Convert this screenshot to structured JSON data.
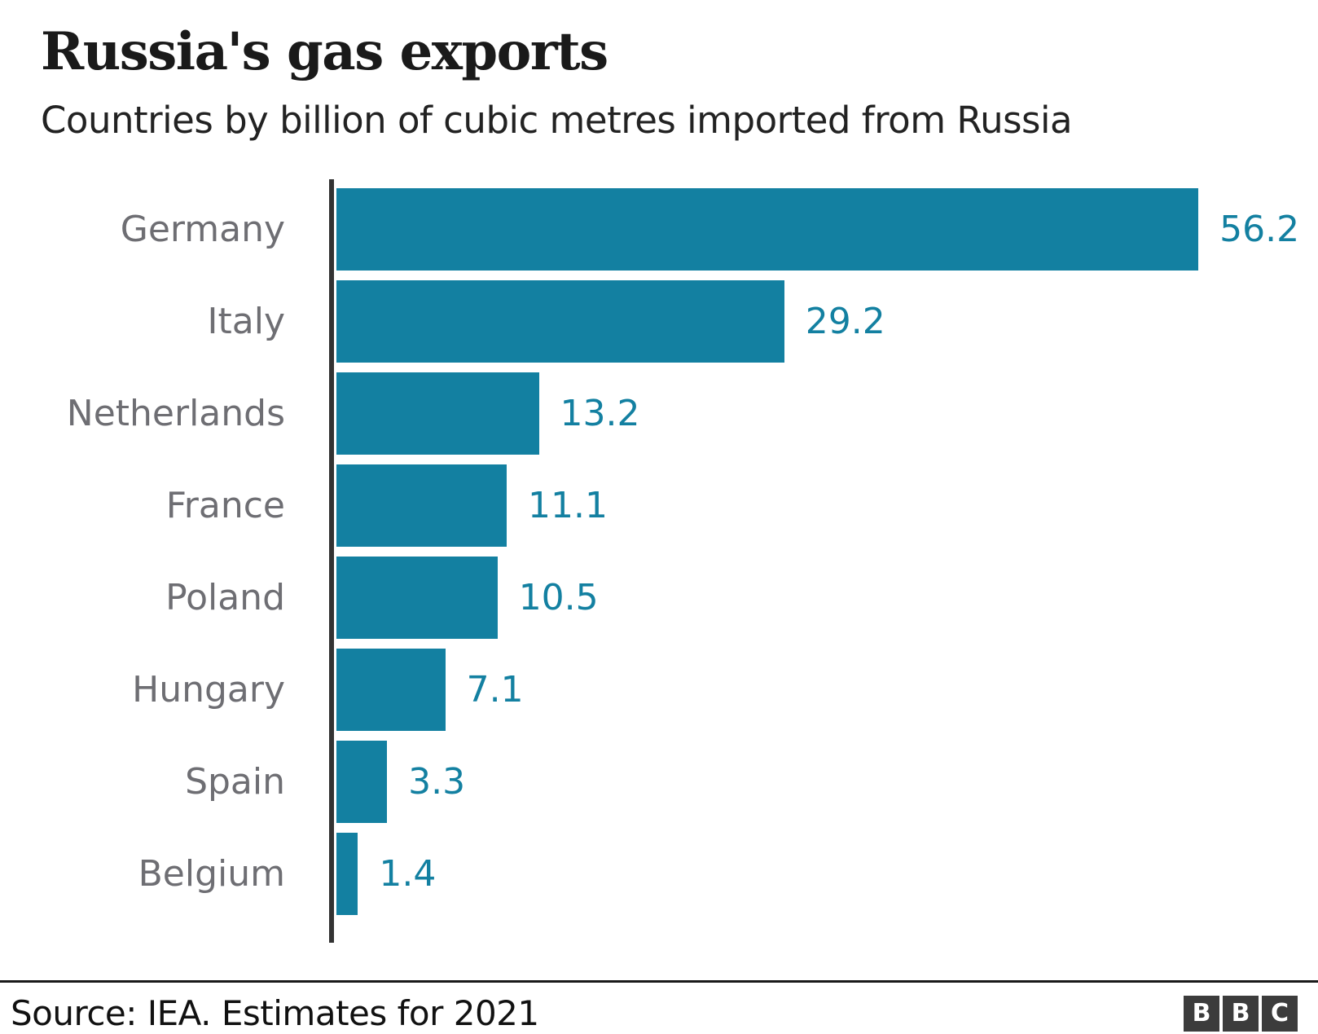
{
  "header": {
    "title": "Russia's gas exports",
    "subtitle": "Countries by billion of cubic metres imported from Russia"
  },
  "chart_data": {
    "type": "bar",
    "orientation": "horizontal",
    "title": "Russia's gas exports",
    "subtitle": "Countries by billion of cubic metres imported from Russia",
    "categories": [
      "Germany",
      "Italy",
      "Netherlands",
      "France",
      "Poland",
      "Hungary",
      "Spain",
      "Belgium"
    ],
    "values": [
      56.2,
      29.2,
      13.2,
      11.1,
      10.5,
      7.1,
      3.3,
      1.4
    ],
    "value_labels": [
      "56.2",
      "29.2",
      "13.2",
      "11.1",
      "10.5",
      "7.1",
      "3.3",
      "1.4"
    ],
    "xlabel": "",
    "ylabel": "",
    "xlim": [
      0,
      64
    ],
    "grid": false,
    "legend": false,
    "bar_color": "#1380A1",
    "value_label_color": "#1380A1",
    "category_label_color": "#6e6e73",
    "axis_color": "#333333"
  },
  "footer": {
    "source": "Source: IEA. Estimates for 2021",
    "logo_letters": [
      "B",
      "B",
      "C"
    ]
  }
}
